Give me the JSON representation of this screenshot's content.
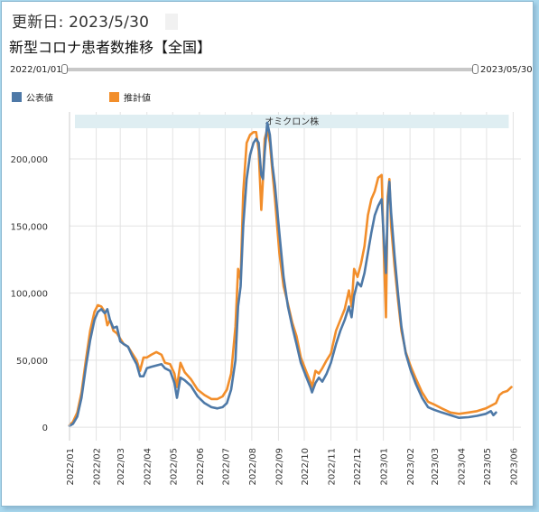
{
  "header": {
    "updated": "更新日: 2023/5/30",
    "title": "新型コロナ患者数推移【全国】"
  },
  "range_slider": {
    "start_label": "2022/01/01",
    "end_label": "2023/05/30"
  },
  "colors": {
    "official": "#4e79a7",
    "estimated": "#f28e2b",
    "band": "#dfeef2",
    "grid": "#e3e3e3"
  },
  "chart_data": {
    "type": "line",
    "title": "",
    "xlabel": "",
    "ylabel": "",
    "x_range": [
      "2022-01-01",
      "2023-06-10"
    ],
    "ylim": [
      -10000,
      235000
    ],
    "y_ticks": [
      0,
      50000,
      100000,
      150000,
      200000
    ],
    "y_tick_labels": [
      "0",
      "50,000",
      "100,000",
      "150,000",
      "200,000"
    ],
    "x_ticks": [
      "2022-01-01",
      "2022-02-01",
      "2022-03-01",
      "2022-04-01",
      "2022-05-01",
      "2022-06-01",
      "2022-07-01",
      "2022-08-01",
      "2022-09-01",
      "2022-10-01",
      "2022-11-01",
      "2022-12-01",
      "2023-01-01",
      "2023-02-01",
      "2023-03-01",
      "2023-04-01",
      "2023-05-01",
      "2023-06-01"
    ],
    "x_tick_labels": [
      "2022/01",
      "2022/02",
      "2022/03",
      "2022/04",
      "2022/05",
      "2022/06",
      "2022/07",
      "2022/08",
      "2022/09",
      "2022/10",
      "2022/11",
      "2022/12",
      "2023/01",
      "2023/02",
      "2023/03",
      "2023/04",
      "2023/05",
      "2023/06"
    ],
    "grid": true,
    "legend_position": "top-left",
    "band": {
      "label": "オミクロン株",
      "start": "2022-01-01",
      "end": "2023-05-31"
    },
    "series": [
      {
        "name": "公表値",
        "color": "#4e79a7",
        "points": [
          [
            "2022-01-01",
            1000
          ],
          [
            "2022-01-05",
            2500
          ],
          [
            "2022-01-10",
            8000
          ],
          [
            "2022-01-15",
            22000
          ],
          [
            "2022-01-20",
            45000
          ],
          [
            "2022-01-25",
            65000
          ],
          [
            "2022-01-30",
            80000
          ],
          [
            "2022-02-03",
            86000
          ],
          [
            "2022-02-07",
            88000
          ],
          [
            "2022-02-11",
            85000
          ],
          [
            "2022-02-14",
            88000
          ],
          [
            "2022-02-17",
            80000
          ],
          [
            "2022-02-21",
            74000
          ],
          [
            "2022-02-25",
            75000
          ],
          [
            "2022-03-01",
            64000
          ],
          [
            "2022-03-05",
            62000
          ],
          [
            "2022-03-10",
            60000
          ],
          [
            "2022-03-15",
            53000
          ],
          [
            "2022-03-20",
            47000
          ],
          [
            "2022-03-24",
            38000
          ],
          [
            "2022-03-28",
            38000
          ],
          [
            "2022-04-01",
            44000
          ],
          [
            "2022-04-06",
            45000
          ],
          [
            "2022-04-12",
            46000
          ],
          [
            "2022-04-18",
            47000
          ],
          [
            "2022-04-22",
            44000
          ],
          [
            "2022-04-28",
            42000
          ],
          [
            "2022-05-03",
            33000
          ],
          [
            "2022-05-06",
            22000
          ],
          [
            "2022-05-10",
            37000
          ],
          [
            "2022-05-15",
            35000
          ],
          [
            "2022-05-22",
            31000
          ],
          [
            "2022-05-30",
            23000
          ],
          [
            "2022-06-07",
            18000
          ],
          [
            "2022-06-15",
            15000
          ],
          [
            "2022-06-22",
            14000
          ],
          [
            "2022-06-28",
            15000
          ],
          [
            "2022-07-03",
            18000
          ],
          [
            "2022-07-08",
            28000
          ],
          [
            "2022-07-13",
            50000
          ],
          [
            "2022-07-16",
            90000
          ],
          [
            "2022-07-19",
            105000
          ],
          [
            "2022-07-22",
            150000
          ],
          [
            "2022-07-26",
            185000
          ],
          [
            "2022-07-30",
            203000
          ],
          [
            "2022-08-03",
            212000
          ],
          [
            "2022-08-06",
            215000
          ],
          [
            "2022-08-09",
            212000
          ],
          [
            "2022-08-12",
            188000
          ],
          [
            "2022-08-14",
            185000
          ],
          [
            "2022-08-16",
            205000
          ],
          [
            "2022-08-19",
            227000
          ],
          [
            "2022-08-22",
            218000
          ],
          [
            "2022-08-25",
            195000
          ],
          [
            "2022-08-28",
            180000
          ],
          [
            "2022-09-02",
            145000
          ],
          [
            "2022-09-07",
            112000
          ],
          [
            "2022-09-12",
            90000
          ],
          [
            "2022-09-17",
            75000
          ],
          [
            "2022-09-22",
            62000
          ],
          [
            "2022-09-27",
            48000
          ],
          [
            "2022-10-03",
            38000
          ],
          [
            "2022-10-08",
            30000
          ],
          [
            "2022-10-10",
            26000
          ],
          [
            "2022-10-14",
            33000
          ],
          [
            "2022-10-18",
            37000
          ],
          [
            "2022-10-22",
            34000
          ],
          [
            "2022-10-27",
            40000
          ],
          [
            "2022-11-01",
            48000
          ],
          [
            "2022-11-07",
            62000
          ],
          [
            "2022-11-12",
            72000
          ],
          [
            "2022-11-17",
            80000
          ],
          [
            "2022-11-22",
            90000
          ],
          [
            "2022-11-25",
            82000
          ],
          [
            "2022-11-28",
            98000
          ],
          [
            "2022-12-02",
            108000
          ],
          [
            "2022-12-06",
            105000
          ],
          [
            "2022-12-10",
            115000
          ],
          [
            "2022-12-14",
            130000
          ],
          [
            "2022-12-18",
            145000
          ],
          [
            "2022-12-22",
            158000
          ],
          [
            "2022-12-26",
            165000
          ],
          [
            "2022-12-30",
            170000
          ],
          [
            "2023-01-02",
            135000
          ],
          [
            "2023-01-04",
            115000
          ],
          [
            "2023-01-06",
            165000
          ],
          [
            "2023-01-08",
            183000
          ],
          [
            "2023-01-10",
            160000
          ],
          [
            "2023-01-14",
            128000
          ],
          [
            "2023-01-18",
            100000
          ],
          [
            "2023-01-22",
            75000
          ],
          [
            "2023-01-27",
            55000
          ],
          [
            "2023-02-02",
            42000
          ],
          [
            "2023-02-08",
            32000
          ],
          [
            "2023-02-15",
            22000
          ],
          [
            "2023-02-22",
            15000
          ],
          [
            "2023-03-01",
            13000
          ],
          [
            "2023-03-10",
            11000
          ],
          [
            "2023-03-20",
            9000
          ],
          [
            "2023-03-30",
            7000
          ],
          [
            "2023-04-10",
            7500
          ],
          [
            "2023-04-20",
            8500
          ],
          [
            "2023-04-30",
            10000
          ],
          [
            "2023-05-06",
            12000
          ],
          [
            "2023-05-09",
            9000
          ],
          [
            "2023-05-12",
            11000
          ]
        ]
      },
      {
        "name": "推計値",
        "color": "#f28e2b",
        "points": [
          [
            "2022-01-01",
            1500
          ],
          [
            "2022-01-05",
            4000
          ],
          [
            "2022-01-10",
            11000
          ],
          [
            "2022-01-15",
            26000
          ],
          [
            "2022-01-20",
            50000
          ],
          [
            "2022-01-25",
            72000
          ],
          [
            "2022-01-30",
            86000
          ],
          [
            "2022-02-03",
            91000
          ],
          [
            "2022-02-07",
            90000
          ],
          [
            "2022-02-11",
            86000
          ],
          [
            "2022-02-14",
            76000
          ],
          [
            "2022-02-17",
            80000
          ],
          [
            "2022-02-21",
            72000
          ],
          [
            "2022-02-25",
            70000
          ],
          [
            "2022-03-01",
            66000
          ],
          [
            "2022-03-05",
            62000
          ],
          [
            "2022-03-10",
            60000
          ],
          [
            "2022-03-15",
            55000
          ],
          [
            "2022-03-20",
            50000
          ],
          [
            "2022-03-24",
            42000
          ],
          [
            "2022-03-28",
            52000
          ],
          [
            "2022-04-01",
            52000
          ],
          [
            "2022-04-06",
            54000
          ],
          [
            "2022-04-12",
            56000
          ],
          [
            "2022-04-18",
            54000
          ],
          [
            "2022-04-22",
            48000
          ],
          [
            "2022-04-28",
            47000
          ],
          [
            "2022-05-03",
            40000
          ],
          [
            "2022-05-06",
            30000
          ],
          [
            "2022-05-10",
            48000
          ],
          [
            "2022-05-15",
            41000
          ],
          [
            "2022-05-22",
            36000
          ],
          [
            "2022-05-30",
            28000
          ],
          [
            "2022-06-07",
            24000
          ],
          [
            "2022-06-15",
            21000
          ],
          [
            "2022-06-22",
            21000
          ],
          [
            "2022-06-28",
            23000
          ],
          [
            "2022-07-03",
            28000
          ],
          [
            "2022-07-08",
            40000
          ],
          [
            "2022-07-13",
            75000
          ],
          [
            "2022-07-16",
            118000
          ],
          [
            "2022-07-19",
            110000
          ],
          [
            "2022-07-22",
            175000
          ],
          [
            "2022-07-26",
            212000
          ],
          [
            "2022-07-30",
            218000
          ],
          [
            "2022-08-03",
            220000
          ],
          [
            "2022-08-06",
            220000
          ],
          [
            "2022-08-09",
            206000
          ],
          [
            "2022-08-12",
            162000
          ],
          [
            "2022-08-14",
            185000
          ],
          [
            "2022-08-16",
            215000
          ],
          [
            "2022-08-19",
            222000
          ],
          [
            "2022-08-22",
            212000
          ],
          [
            "2022-08-25",
            190000
          ],
          [
            "2022-08-28",
            170000
          ],
          [
            "2022-09-02",
            130000
          ],
          [
            "2022-09-07",
            105000
          ],
          [
            "2022-09-12",
            92000
          ],
          [
            "2022-09-17",
            78000
          ],
          [
            "2022-09-22",
            68000
          ],
          [
            "2022-09-27",
            52000
          ],
          [
            "2022-10-03",
            42000
          ],
          [
            "2022-10-08",
            34000
          ],
          [
            "2022-10-10",
            30000
          ],
          [
            "2022-10-14",
            42000
          ],
          [
            "2022-10-18",
            40000
          ],
          [
            "2022-10-22",
            44000
          ],
          [
            "2022-10-27",
            50000
          ],
          [
            "2022-11-01",
            55000
          ],
          [
            "2022-11-07",
            72000
          ],
          [
            "2022-11-12",
            80000
          ],
          [
            "2022-11-17",
            88000
          ],
          [
            "2022-11-22",
            102000
          ],
          [
            "2022-11-25",
            90000
          ],
          [
            "2022-11-28",
            118000
          ],
          [
            "2022-12-02",
            112000
          ],
          [
            "2022-12-06",
            122000
          ],
          [
            "2022-12-10",
            135000
          ],
          [
            "2022-12-14",
            158000
          ],
          [
            "2022-12-18",
            170000
          ],
          [
            "2022-12-22",
            176000
          ],
          [
            "2022-12-26",
            186000
          ],
          [
            "2022-12-30",
            188000
          ],
          [
            "2023-01-02",
            120000
          ],
          [
            "2023-01-04",
            82000
          ],
          [
            "2023-01-06",
            172000
          ],
          [
            "2023-01-08",
            185000
          ],
          [
            "2023-01-10",
            150000
          ],
          [
            "2023-01-14",
            120000
          ],
          [
            "2023-01-18",
            95000
          ],
          [
            "2023-01-22",
            72000
          ],
          [
            "2023-01-27",
            56000
          ],
          [
            "2023-02-02",
            45000
          ],
          [
            "2023-02-08",
            36000
          ],
          [
            "2023-02-15",
            26000
          ],
          [
            "2023-02-22",
            19000
          ],
          [
            "2023-03-01",
            17000
          ],
          [
            "2023-03-10",
            14000
          ],
          [
            "2023-03-20",
            11000
          ],
          [
            "2023-03-30",
            10000
          ],
          [
            "2023-04-10",
            11000
          ],
          [
            "2023-04-20",
            12000
          ],
          [
            "2023-04-30",
            14000
          ],
          [
            "2023-05-06",
            16000
          ],
          [
            "2023-05-12",
            18000
          ],
          [
            "2023-05-16",
            24000
          ],
          [
            "2023-05-20",
            26000
          ],
          [
            "2023-05-25",
            27000
          ],
          [
            "2023-05-30",
            30000
          ]
        ]
      }
    ]
  }
}
